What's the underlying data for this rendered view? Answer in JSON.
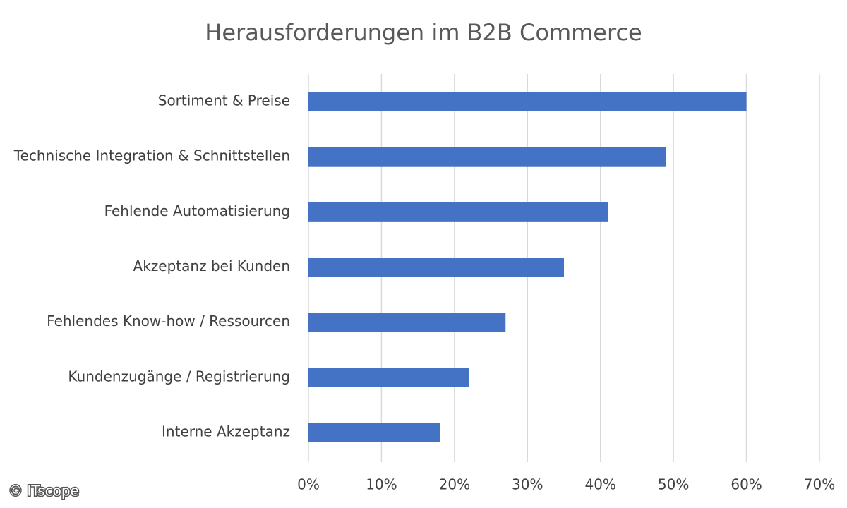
{
  "chart_data": {
    "type": "barh",
    "title": "Herausforderungen im B2B Commerce",
    "categories": [
      "Sortiment & Preise",
      "Technische Integration & Schnittstellen",
      "Fehlende Automatisierung",
      "Akzeptanz bei Kunden",
      "Fehlendes Know-how / Ressourcen",
      "Kundenzugänge / Registrierung",
      "Interne Akzeptanz"
    ],
    "values": [
      60,
      49,
      41,
      35,
      27,
      22,
      18
    ],
    "color": "#4472c4",
    "xlim": [
      0,
      70
    ],
    "xticks": [
      {
        "value": 0,
        "label": "0%"
      },
      {
        "value": 10,
        "label": "10%"
      },
      {
        "value": 20,
        "label": "20%"
      },
      {
        "value": 30,
        "label": "30%"
      },
      {
        "value": 40,
        "label": "40%"
      },
      {
        "value": 50,
        "label": "50%"
      },
      {
        "value": 60,
        "label": "60%"
      },
      {
        "value": 70,
        "label": "70%"
      }
    ],
    "grid": true,
    "source": "© ITscope"
  }
}
